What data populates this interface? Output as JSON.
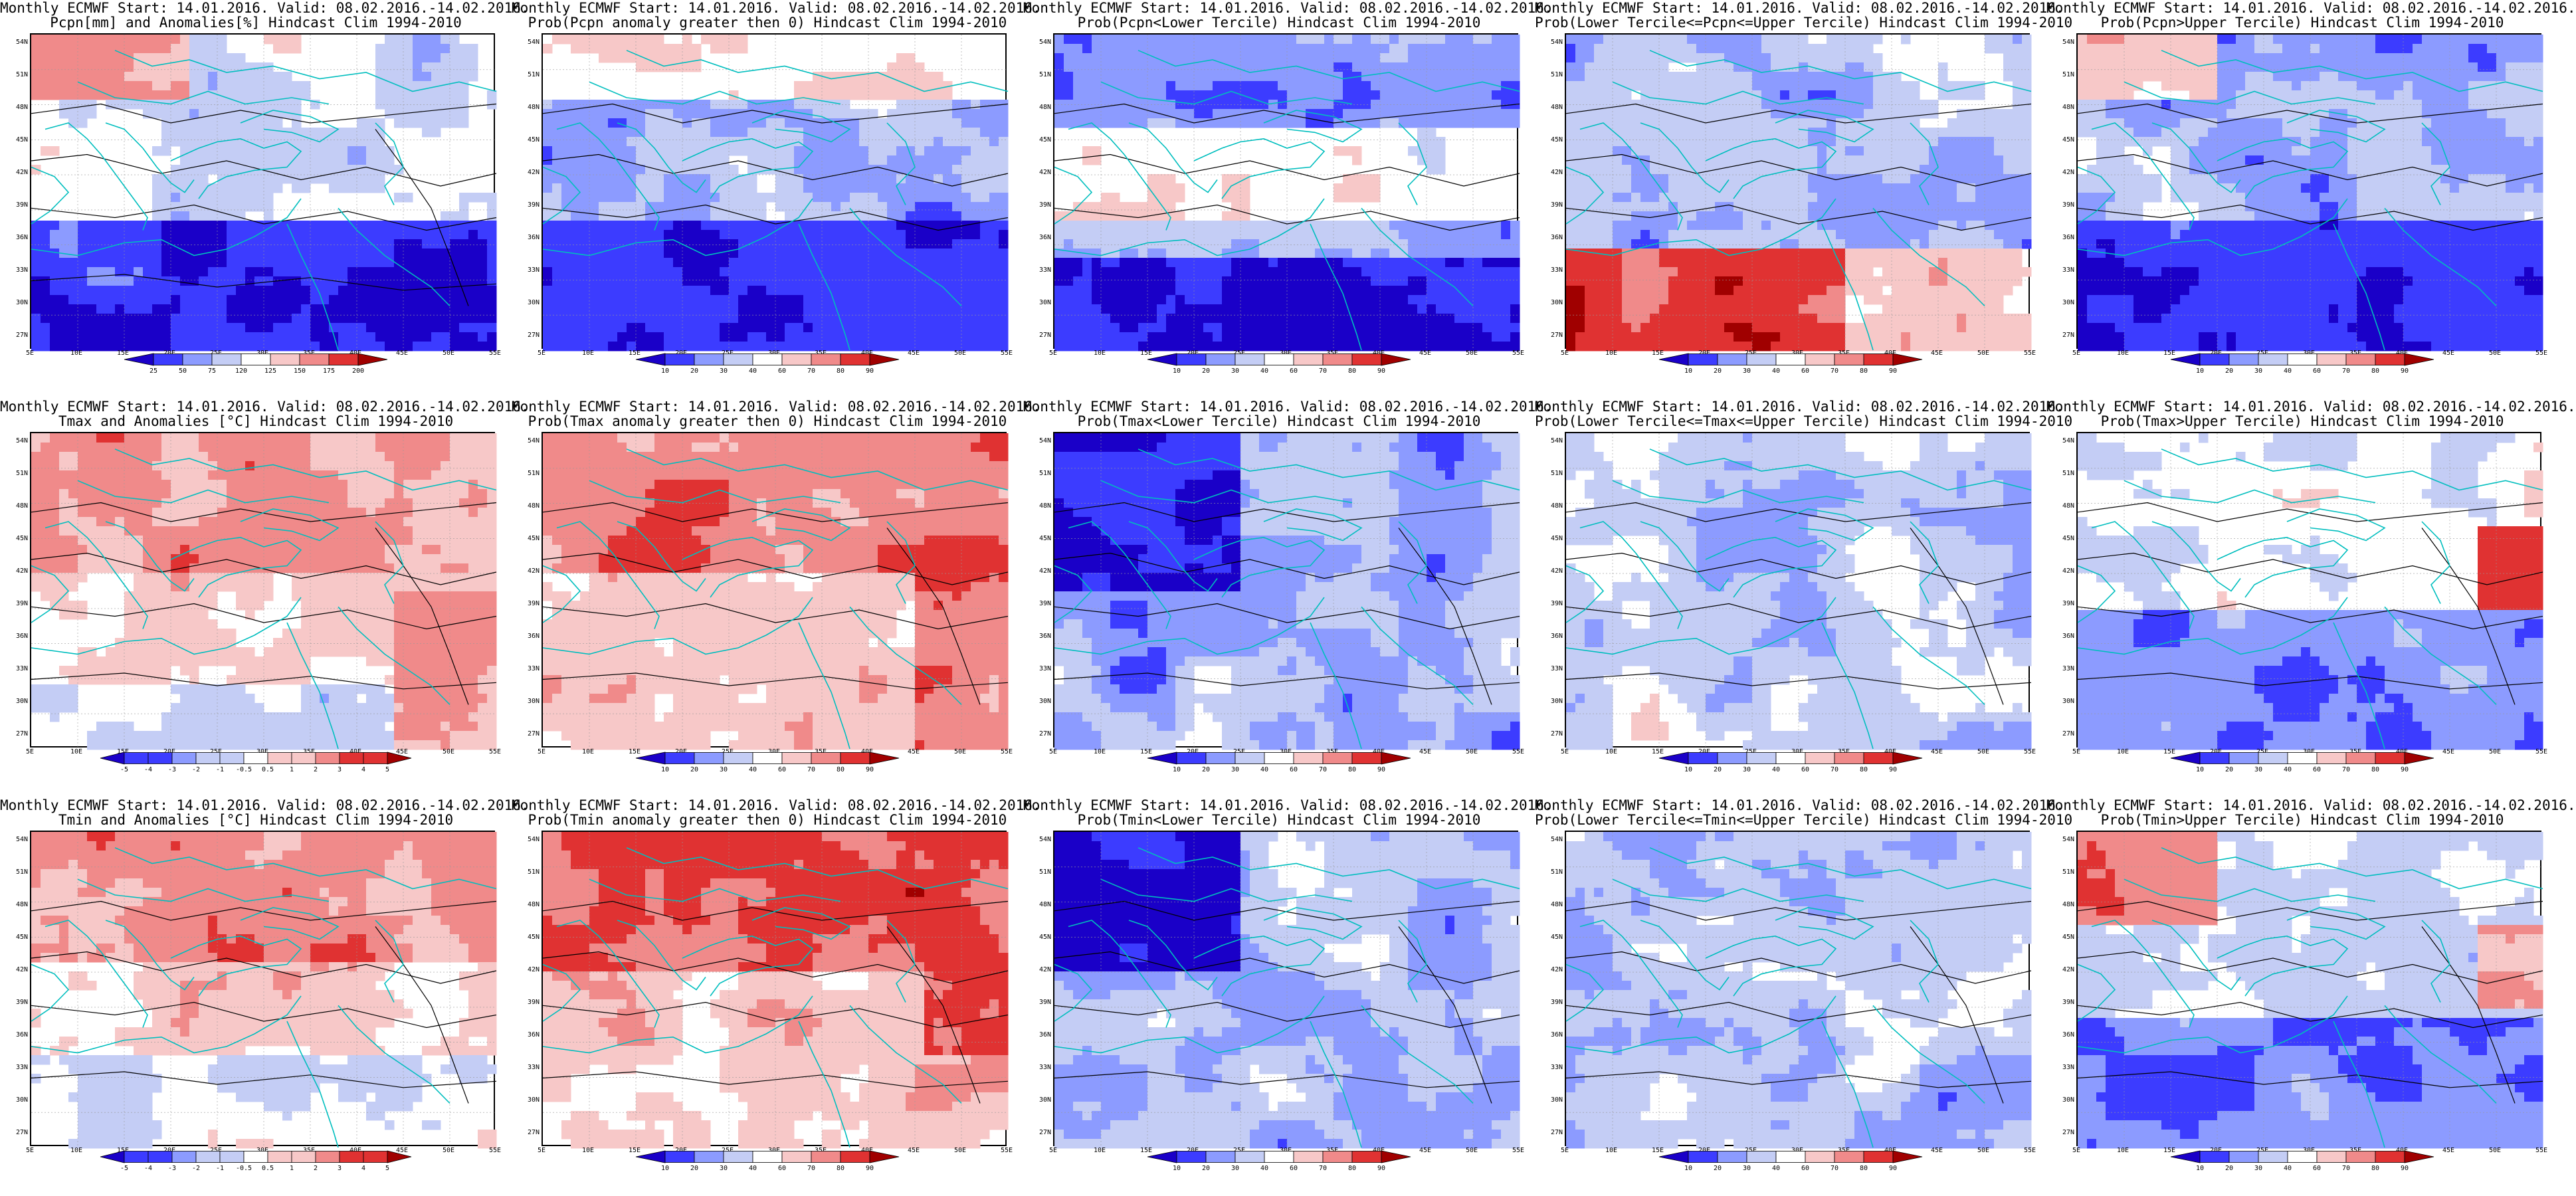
{
  "page": {
    "name": "ECMWF monthly forecast panel grid"
  },
  "colors": {
    "blue_dark": "#1a00c8",
    "blue_mid": "#3c3cff",
    "blue_light": "#8c9bff",
    "blue_pale": "#c4cdf5",
    "white": "#ffffff",
    "red_pale": "#f7c8c8",
    "red_light": "#f08a8a",
    "red_mid": "#e03232",
    "red_dark": "#a00000",
    "coast": "#00bebe",
    "contour": "#000000"
  },
  "axes": {
    "lat_labels": [
      "54N",
      "51N",
      "48N",
      "45N",
      "42N",
      "39N",
      "36N",
      "33N",
      "30N",
      "27N"
    ],
    "lon_labels": [
      "5E",
      "10E",
      "15E",
      "20E",
      "25E",
      "30E",
      "35E",
      "40E",
      "45E",
      "50E",
      "55E"
    ]
  },
  "colorbars": {
    "precip": [
      "25",
      "50",
      "75",
      "120",
      "125",
      "150",
      "175",
      "200"
    ],
    "prob": [
      "10",
      "20",
      "30",
      "40",
      "60",
      "70",
      "80",
      "90"
    ],
    "temp": [
      "-5",
      "-4",
      "-3",
      "-2",
      "-1",
      "-0.5",
      "0.5",
      "1",
      "2",
      "3",
      "4",
      "5"
    ]
  },
  "panels": [
    {
      "title1": "Monthly ECMWF Start: 14.01.2016. Valid: 08.02.2016.-14.02.2016.",
      "title2": "Pcpn[mm] and Anomalies[%] Hindcast Clim 1994-2010",
      "palette": "anom",
      "colorbar": "precip",
      "field": "precip_anom"
    },
    {
      "title1": "Monthly ECMWF Start: 14.01.2016. Valid: 08.02.2016.-14.02.2016.",
      "title2": "Prob(Pcpn anomaly greater then 0) Hindcast Clim 1994-2010",
      "palette": "prob",
      "colorbar": "prob",
      "field": "precip_pos"
    },
    {
      "title1": "Monthly ECMWF Start: 14.01.2016. Valid: 08.02.2016.-14.02.2016.",
      "title2": "Prob(Pcpn<Lower Tercile) Hindcast Clim 1994-2010",
      "palette": "prob",
      "colorbar": "prob",
      "field": "precip_low"
    },
    {
      "title1": "Monthly ECMWF Start: 14.01.2016. Valid: 08.02.2016.-14.02.2016.",
      "title2": "Prob(Lower Tercile<=Pcpn<=Upper Tercile) Hindcast Clim 1994-2010",
      "palette": "prob",
      "colorbar": "prob",
      "field": "precip_mid"
    },
    {
      "title1": "Monthly ECMWF Start: 14.01.2016. Valid: 08.02.2016.-14.02.2016.",
      "title2": "Prob(Pcpn>Upper Tercile) Hindcast Clim 1994-2010",
      "palette": "prob",
      "colorbar": "prob",
      "field": "precip_up"
    },
    {
      "title1": "Monthly ECMWF Start: 14.01.2016. Valid: 08.02.2016.-14.02.2016.",
      "title2": "Tmax and Anomalies [°C] Hindcast Clim 1994-2010",
      "palette": "anom",
      "colorbar": "temp",
      "field": "tmax_anom"
    },
    {
      "title1": "Monthly ECMWF Start: 14.01.2016. Valid: 08.02.2016.-14.02.2016.",
      "title2": "Prob(Tmax anomaly greater then 0) Hindcast Clim 1994-2010",
      "palette": "prob",
      "colorbar": "prob",
      "field": "tmax_pos"
    },
    {
      "title1": "Monthly ECMWF Start: 14.01.2016. Valid: 08.02.2016.-14.02.2016.",
      "title2": "Prob(Tmax<Lower Tercile) Hindcast Clim 1994-2010",
      "palette": "prob",
      "colorbar": "prob",
      "field": "tmax_low"
    },
    {
      "title1": "Monthly ECMWF Start: 14.01.2016. Valid: 08.02.2016.-14.02.2016.",
      "title2": "Prob(Lower Tercile<=Tmax<=Upper Tercile) Hindcast Clim 1994-2010",
      "palette": "prob",
      "colorbar": "prob",
      "field": "tmax_mid"
    },
    {
      "title1": "Monthly ECMWF Start: 14.01.2016. Valid: 08.02.2016.-14.02.2016.",
      "title2": "Prob(Tmax>Upper Tercile) Hindcast Clim 1994-2010",
      "palette": "prob",
      "colorbar": "prob",
      "field": "tmax_up"
    },
    {
      "title1": "Monthly ECMWF Start: 14.01.2016. Valid: 08.02.2016.-14.02.2016.",
      "title2": "Tmin and Anomalies [°C] Hindcast Clim 1994-2010",
      "palette": "anom",
      "colorbar": "temp",
      "field": "tmin_anom"
    },
    {
      "title1": "Monthly ECMWF Start: 14.01.2016. Valid: 08.02.2016.-14.02.2016.",
      "title2": "Prob(Tmin anomaly greater then 0) Hindcast Clim 1994-2010",
      "palette": "prob",
      "colorbar": "prob",
      "field": "tmin_pos"
    },
    {
      "title1": "Monthly ECMWF Start: 14.01.2016. Valid: 08.02.2016.-14.02.2016.",
      "title2": "Prob(Tmin<Lower Tercile) Hindcast Clim 1994-2010",
      "palette": "prob",
      "colorbar": "prob",
      "field": "tmin_low"
    },
    {
      "title1": "Monthly ECMWF Start: 14.01.2016. Valid: 08.02.2016.-14.02.2016.",
      "title2": "Prob(Lower Tercile<=Tmin<=Upper Tercile) Hindcast Clim 1994-2010",
      "palette": "prob",
      "colorbar": "prob",
      "field": "tmin_mid"
    },
    {
      "title1": "Monthly ECMWF Start: 14.01.2016. Valid: 08.02.2016.-14.02.2016.",
      "title2": "Prob(Tmin>Upper Tercile) Hindcast Clim 1994-2010",
      "palette": "prob",
      "colorbar": "prob",
      "field": "tmin_up"
    }
  ]
}
